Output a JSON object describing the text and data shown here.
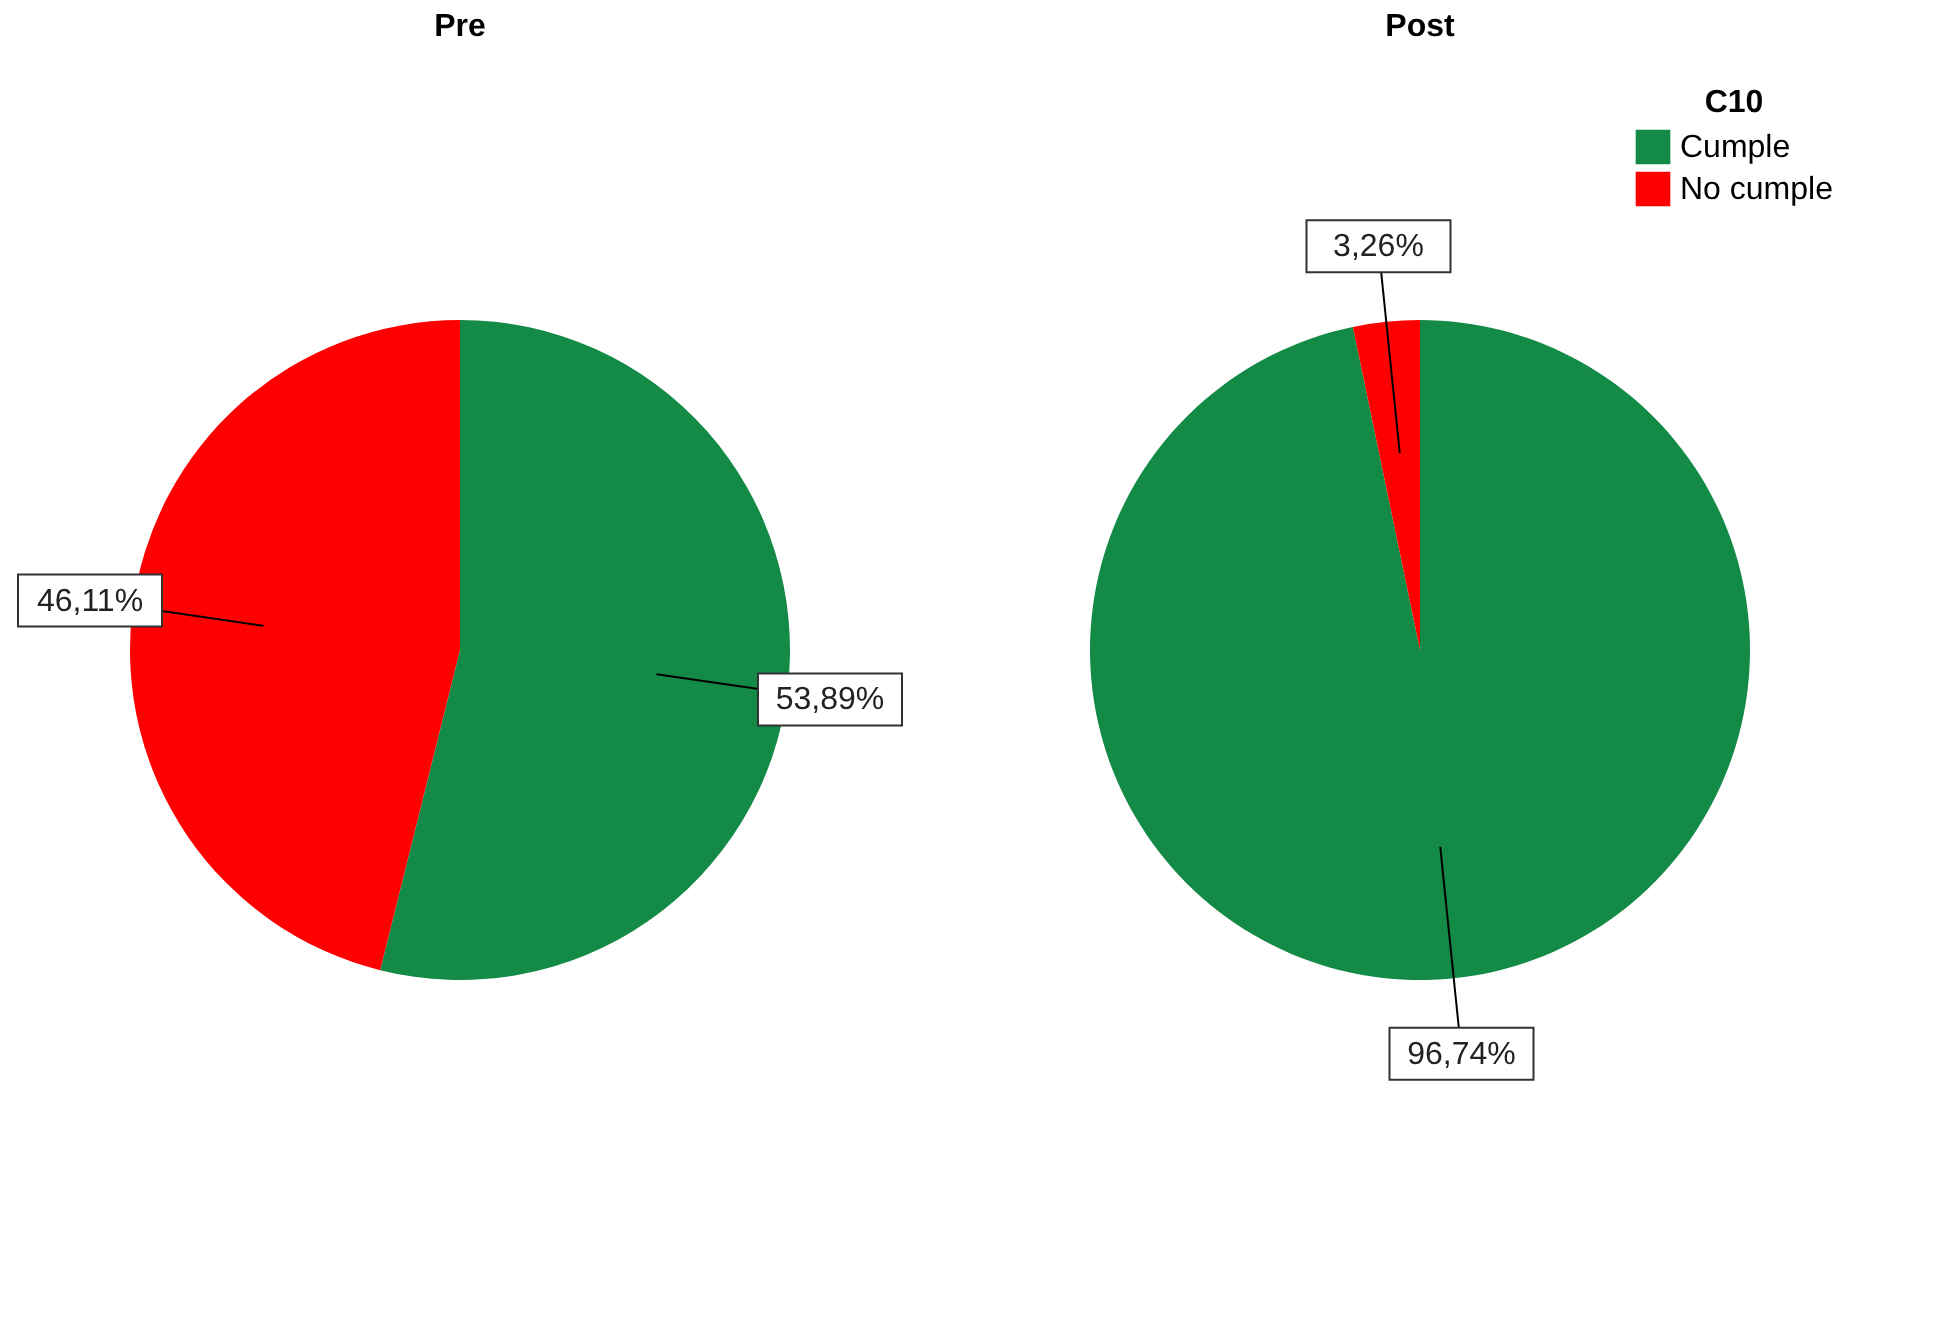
{
  "chart_data": [
    {
      "type": "pie",
      "title": "Pre",
      "categories": [
        null,
        null
      ],
      "values": [
        53.89,
        46.11
      ],
      "colors": [
        "#138a45",
        "#ff0000"
      ],
      "value_labels": [
        "53,89%",
        "46,11%"
      ],
      "legend": false
    },
    {
      "type": "pie",
      "title": "Post",
      "categories": [
        "Cumple",
        "No cumple"
      ],
      "values": [
        96.74,
        3.26
      ],
      "colors": [
        "#138a45",
        "#ff0000"
      ],
      "value_labels": [
        "96,74%",
        "3,26%"
      ],
      "legend": "top right",
      "legend_title": "C10"
    }
  ]
}
